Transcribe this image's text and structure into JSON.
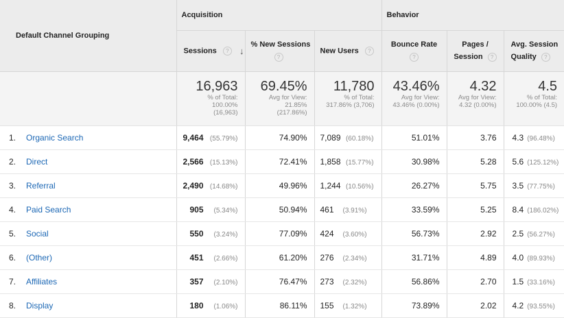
{
  "groups": {
    "acquisition": "Acquisition",
    "behavior": "Behavior"
  },
  "columns": {
    "dimension": "Default Channel Grouping",
    "sessions": "Sessions",
    "new_sessions_pct": "% New Sessions",
    "new_users": "New Users",
    "bounce_rate": "Bounce Rate",
    "pages_session_1": "Pages /",
    "pages_session_2": "Session",
    "avg_quality_1": "Avg. Session",
    "avg_quality_2": "Quality"
  },
  "help_glyph": "?",
  "sort_glyph": "↓",
  "totals": {
    "sessions": {
      "value": "16,963",
      "l1": "% of Total:",
      "l2": "100.00%",
      "l3": "(16,963)"
    },
    "new_sessions_pct": {
      "value": "69.45%",
      "l1": "Avg for View:",
      "l2": "21.85%",
      "l3": "(217.86%)"
    },
    "new_users": {
      "value": "11,780",
      "l1": "% of Total:",
      "l2": "317.86% (3,706)"
    },
    "bounce_rate": {
      "value": "43.46%",
      "l1": "Avg for View:",
      "l2": "43.46% (0.00%)"
    },
    "pages_session": {
      "value": "4.32",
      "l1": "Avg for View:",
      "l2": "4.32 (0.00%)"
    },
    "avg_quality": {
      "value": "4.5",
      "l1": "% of Total:",
      "l2": "100.00% (4.5)"
    }
  },
  "rows": [
    {
      "index": "1.",
      "channel": "Organic Search",
      "sessions": "9,464",
      "sessions_pct": "(55.79%)",
      "new_sessions_pct": "74.90%",
      "new_users": "7,089",
      "new_users_pct": "(60.18%)",
      "bounce_rate": "51.01%",
      "pages_session": "3.76",
      "quality": "4.3",
      "quality_pct": "(96.48%)"
    },
    {
      "index": "2.",
      "channel": "Direct",
      "sessions": "2,566",
      "sessions_pct": "(15.13%)",
      "new_sessions_pct": "72.41%",
      "new_users": "1,858",
      "new_users_pct": "(15.77%)",
      "bounce_rate": "30.98%",
      "pages_session": "5.28",
      "quality": "5.6",
      "quality_pct": "(125.12%)"
    },
    {
      "index": "3.",
      "channel": "Referral",
      "sessions": "2,490",
      "sessions_pct": "(14.68%)",
      "new_sessions_pct": "49.96%",
      "new_users": "1,244",
      "new_users_pct": "(10.56%)",
      "bounce_rate": "26.27%",
      "pages_session": "5.75",
      "quality": "3.5",
      "quality_pct": "(77.75%)"
    },
    {
      "index": "4.",
      "channel": "Paid Search",
      "sessions": "905",
      "sessions_pct": "(5.34%)",
      "new_sessions_pct": "50.94%",
      "new_users": "461",
      "new_users_pct": "(3.91%)",
      "bounce_rate": "33.59%",
      "pages_session": "5.25",
      "quality": "8.4",
      "quality_pct": "(186.02%)"
    },
    {
      "index": "5.",
      "channel": "Social",
      "sessions": "550",
      "sessions_pct": "(3.24%)",
      "new_sessions_pct": "77.09%",
      "new_users": "424",
      "new_users_pct": "(3.60%)",
      "bounce_rate": "56.73%",
      "pages_session": "2.92",
      "quality": "2.5",
      "quality_pct": "(56.27%)"
    },
    {
      "index": "6.",
      "channel": "(Other)",
      "sessions": "451",
      "sessions_pct": "(2.66%)",
      "new_sessions_pct": "61.20%",
      "new_users": "276",
      "new_users_pct": "(2.34%)",
      "bounce_rate": "31.71%",
      "pages_session": "4.89",
      "quality": "4.0",
      "quality_pct": "(89.93%)"
    },
    {
      "index": "7.",
      "channel": "Affiliates",
      "sessions": "357",
      "sessions_pct": "(2.10%)",
      "new_sessions_pct": "76.47%",
      "new_users": "273",
      "new_users_pct": "(2.32%)",
      "bounce_rate": "56.86%",
      "pages_session": "2.70",
      "quality": "1.5",
      "quality_pct": "(33.16%)"
    },
    {
      "index": "8.",
      "channel": "Display",
      "sessions": "180",
      "sessions_pct": "(1.06%)",
      "new_sessions_pct": "86.11%",
      "new_users": "155",
      "new_users_pct": "(1.32%)",
      "bounce_rate": "73.89%",
      "pages_session": "2.02",
      "quality": "4.2",
      "quality_pct": "(93.55%)"
    }
  ]
}
